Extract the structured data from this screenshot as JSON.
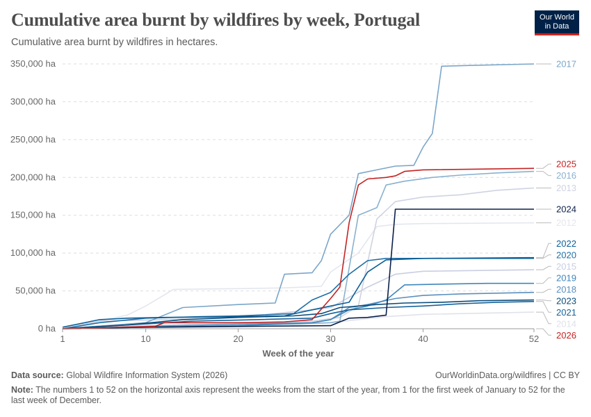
{
  "header": {
    "title": "Cumulative area burnt by wildfires by week, Portugal",
    "subtitle": "Cumulative area burnt by wildfires in hectares.",
    "logo_line1": "Our World",
    "logo_line2": "in Data"
  },
  "footer": {
    "source_label": "Data source:",
    "source_text": "Global Wildfire Information System (2026)",
    "credit": "OurWorldinData.org/wildfires | CC BY",
    "note_label": "Note:",
    "note_text": "The numbers 1 to 52 on the horizontal axis represent the weeks from the start of the year, from 1 for the first week of January to 52 for the last week of December."
  },
  "chart_data": {
    "type": "line",
    "title": "Cumulative area burnt by wildfires by week, Portugal",
    "xlabel": "Week of the year",
    "ylabel": "",
    "xlim": [
      1,
      52
    ],
    "ylim": [
      0,
      350000
    ],
    "x_ticks": [
      1,
      10,
      20,
      30,
      40,
      52
    ],
    "y_ticks": [
      0,
      50000,
      100000,
      150000,
      200000,
      250000,
      300000,
      350000
    ],
    "y_tick_labels": [
      "0 ha",
      "50,000 ha",
      "100,000 ha",
      "150,000 ha",
      "200,000 ha",
      "250,000 ha",
      "300,000 ha",
      "350,000 ha"
    ],
    "grid": "horizontal dashed",
    "legend": "right (line end labels)",
    "series": [
      {
        "name": "2012",
        "color": "#e4e6ee",
        "points": [
          [
            1,
            0
          ],
          [
            8,
            18000
          ],
          [
            10,
            30000
          ],
          [
            13,
            52000
          ],
          [
            20,
            53000
          ],
          [
            25,
            54000
          ],
          [
            29,
            56000
          ],
          [
            30,
            75000
          ],
          [
            33,
            100000
          ],
          [
            35,
            135000
          ],
          [
            37,
            138000
          ],
          [
            40,
            139000
          ],
          [
            52,
            140000
          ]
        ]
      },
      {
        "name": "2013",
        "color": "#cfd3e1",
        "points": [
          [
            1,
            0
          ],
          [
            12,
            5000
          ],
          [
            20,
            7000
          ],
          [
            28,
            10000
          ],
          [
            31,
            15000
          ],
          [
            33,
            30000
          ],
          [
            35,
            145000
          ],
          [
            37,
            168000
          ],
          [
            40,
            174000
          ],
          [
            44,
            177000
          ],
          [
            48,
            183000
          ],
          [
            52,
            186000
          ]
        ]
      },
      {
        "name": "2014",
        "color": "#dfe2ea",
        "points": [
          [
            1,
            0
          ],
          [
            15,
            2000
          ],
          [
            25,
            4000
          ],
          [
            30,
            8000
          ],
          [
            33,
            12000
          ],
          [
            36,
            16000
          ],
          [
            40,
            19000
          ],
          [
            52,
            22000
          ]
        ]
      },
      {
        "name": "2015",
        "color": "#c9cee2",
        "points": [
          [
            1,
            0
          ],
          [
            5,
            10000
          ],
          [
            12,
            12000
          ],
          [
            20,
            15000
          ],
          [
            24,
            20000
          ],
          [
            28,
            25000
          ],
          [
            30,
            28000
          ],
          [
            34,
            55000
          ],
          [
            37,
            72000
          ],
          [
            40,
            76000
          ],
          [
            52,
            78000
          ]
        ]
      },
      {
        "name": "2016",
        "color": "#89b0d0",
        "points": [
          [
            1,
            0
          ],
          [
            10,
            2000
          ],
          [
            20,
            4000
          ],
          [
            30,
            8000
          ],
          [
            31,
            10000
          ],
          [
            33,
            150000
          ],
          [
            35,
            160000
          ],
          [
            36,
            190000
          ],
          [
            38,
            195000
          ],
          [
            41,
            200000
          ],
          [
            44,
            203000
          ],
          [
            48,
            206000
          ],
          [
            52,
            208000
          ]
        ]
      },
      {
        "name": "2017",
        "color": "#7aa6c9",
        "points": [
          [
            1,
            0
          ],
          [
            10,
            8000
          ],
          [
            14,
            28000
          ],
          [
            20,
            32000
          ],
          [
            24,
            34000
          ],
          [
            25,
            72000
          ],
          [
            28,
            74000
          ],
          [
            29,
            90000
          ],
          [
            30,
            125000
          ],
          [
            32,
            150000
          ],
          [
            33,
            205000
          ],
          [
            35,
            210000
          ],
          [
            37,
            215000
          ],
          [
            39,
            216000
          ],
          [
            40,
            240000
          ],
          [
            41,
            258000
          ],
          [
            42,
            347000
          ],
          [
            45,
            348000
          ],
          [
            52,
            350000
          ]
        ]
      },
      {
        "name": "2018",
        "color": "#5b8fbd",
        "points": [
          [
            1,
            0
          ],
          [
            10,
            3000
          ],
          [
            20,
            6000
          ],
          [
            28,
            8000
          ],
          [
            30,
            12000
          ],
          [
            32,
            28000
          ],
          [
            34,
            32000
          ],
          [
            37,
            40000
          ],
          [
            40,
            44000
          ],
          [
            44,
            46000
          ],
          [
            48,
            47000
          ],
          [
            52,
            48000
          ]
        ]
      },
      {
        "name": "2019",
        "color": "#3f86bb",
        "points": [
          [
            1,
            0
          ],
          [
            10,
            2000
          ],
          [
            20,
            4000
          ],
          [
            28,
            8000
          ],
          [
            30,
            12000
          ],
          [
            32,
            25000
          ],
          [
            34,
            30000
          ],
          [
            36,
            38000
          ],
          [
            38,
            58000
          ],
          [
            42,
            59000
          ],
          [
            47,
            60000
          ],
          [
            52,
            60000
          ]
        ]
      },
      {
        "name": "2020",
        "color": "#1f6ea4",
        "points": [
          [
            1,
            0
          ],
          [
            5,
            8000
          ],
          [
            10,
            14000
          ],
          [
            16,
            16000
          ],
          [
            20,
            17000
          ],
          [
            26,
            20000
          ],
          [
            28,
            38000
          ],
          [
            30,
            48000
          ],
          [
            32,
            72000
          ],
          [
            34,
            90000
          ],
          [
            36,
            93000
          ],
          [
            40,
            93000
          ],
          [
            52,
            93000
          ]
        ]
      },
      {
        "name": "2021",
        "color": "#16629a",
        "points": [
          [
            1,
            0
          ],
          [
            8,
            5000
          ],
          [
            15,
            10000
          ],
          [
            22,
            12000
          ],
          [
            28,
            14000
          ],
          [
            30,
            20000
          ],
          [
            32,
            25000
          ],
          [
            36,
            28000
          ],
          [
            40,
            30000
          ],
          [
            44,
            33000
          ],
          [
            48,
            35000
          ],
          [
            52,
            36000
          ]
        ]
      },
      {
        "name": "2022",
        "color": "#0b5d97",
        "points": [
          [
            1,
            2000
          ],
          [
            5,
            12000
          ],
          [
            8,
            14000
          ],
          [
            12,
            15000
          ],
          [
            20,
            16000
          ],
          [
            25,
            17000
          ],
          [
            28,
            25000
          ],
          [
            30,
            30000
          ],
          [
            32,
            35000
          ],
          [
            34,
            75000
          ],
          [
            36,
            91000
          ],
          [
            40,
            93000
          ],
          [
            52,
            94000
          ]
        ]
      },
      {
        "name": "2023",
        "color": "#0a4c7a",
        "points": [
          [
            1,
            0
          ],
          [
            8,
            5000
          ],
          [
            14,
            12000
          ],
          [
            20,
            15000
          ],
          [
            26,
            17000
          ],
          [
            29,
            20000
          ],
          [
            31,
            28000
          ],
          [
            35,
            32000
          ],
          [
            38,
            34000
          ],
          [
            42,
            35000
          ],
          [
            46,
            37000
          ],
          [
            52,
            38000
          ]
        ]
      },
      {
        "name": "2024",
        "color": "#0b1f49",
        "points": [
          [
            1,
            0
          ],
          [
            10,
            2000
          ],
          [
            20,
            3000
          ],
          [
            30,
            4000
          ],
          [
            32,
            14000
          ],
          [
            34,
            15000
          ],
          [
            36,
            18000
          ],
          [
            37,
            158000
          ],
          [
            52,
            158000
          ]
        ]
      },
      {
        "name": "2025",
        "color": "#c32222",
        "points": [
          [
            1,
            0
          ],
          [
            11,
            3000
          ],
          [
            12,
            8000
          ],
          [
            20,
            8000
          ],
          [
            25,
            9000
          ],
          [
            28,
            12000
          ],
          [
            30,
            40000
          ],
          [
            31,
            55000
          ],
          [
            32,
            140000
          ],
          [
            33,
            190000
          ],
          [
            34,
            198000
          ],
          [
            36,
            200000
          ],
          [
            37,
            202000
          ],
          [
            38,
            208000
          ],
          [
            40,
            210000
          ],
          [
            52,
            212000
          ]
        ]
      },
      {
        "name": "2026",
        "color": "#c32222",
        "points": [
          [
            1,
            0
          ],
          [
            3,
            0
          ]
        ]
      }
    ]
  }
}
